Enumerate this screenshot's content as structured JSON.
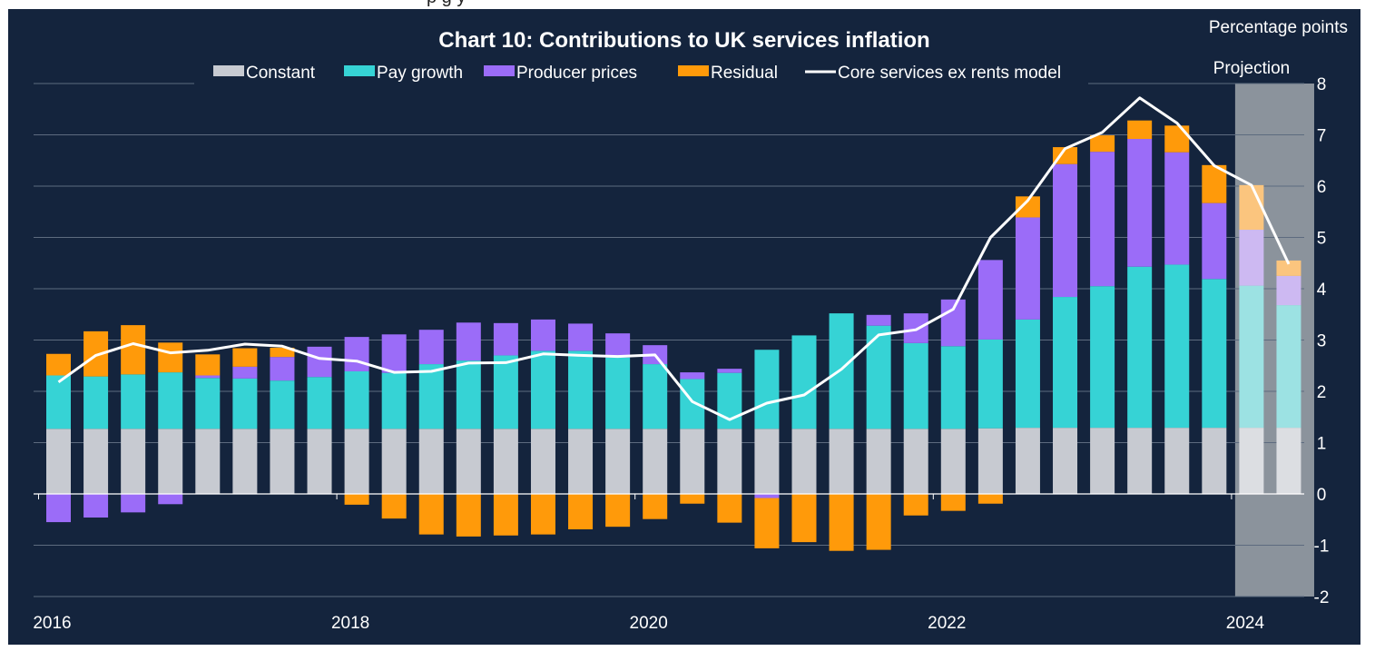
{
  "top_fragment": "p     g           y",
  "chart_data": {
    "type": "bar",
    "stacked": true,
    "title": "Chart 10: Contributions to UK services inflation",
    "unit_label": "Percentage points",
    "projection_label": "Projection",
    "legend_position": "top",
    "ylim": [
      -2,
      8
    ],
    "yticks": [
      "8",
      "7",
      "6",
      "5",
      "4",
      "3",
      "2",
      "1",
      "0",
      "-1",
      "-2"
    ],
    "xticks": [
      {
        "label": "2016",
        "year": 2016
      },
      {
        "label": "2018",
        "year": 2018
      },
      {
        "label": "2020",
        "year": 2020
      },
      {
        "label": "2022",
        "year": 2022
      },
      {
        "label": "2024",
        "year": 2024
      }
    ],
    "x": [
      2016.0,
      2016.25,
      2016.5,
      2016.75,
      2017.0,
      2017.25,
      2017.5,
      2017.75,
      2018.0,
      2018.25,
      2018.5,
      2018.75,
      2019.0,
      2019.25,
      2019.5,
      2019.75,
      2020.0,
      2020.25,
      2020.5,
      2020.75,
      2021.0,
      2021.25,
      2021.5,
      2021.75,
      2022.0,
      2022.25,
      2022.5,
      2022.75,
      2023.0,
      2023.25,
      2023.5,
      2023.75,
      2024.0,
      2024.25
    ],
    "projection_start_index": 32,
    "series": [
      {
        "name": "Constant",
        "color": "#c7cad1",
        "projection_color": "#dcdee2",
        "values": [
          1.27,
          1.27,
          1.27,
          1.27,
          1.27,
          1.27,
          1.27,
          1.27,
          1.27,
          1.27,
          1.27,
          1.27,
          1.27,
          1.27,
          1.27,
          1.27,
          1.27,
          1.27,
          1.27,
          1.27,
          1.27,
          1.27,
          1.27,
          1.27,
          1.27,
          1.28,
          1.29,
          1.29,
          1.29,
          1.29,
          1.29,
          1.29,
          1.29,
          1.29
        ]
      },
      {
        "name": "Pay growth",
        "color": "#36d3d5",
        "projection_color": "#9ce2e3",
        "values": [
          1.04,
          1.02,
          1.06,
          1.1,
          0.99,
          0.98,
          0.94,
          1.01,
          1.12,
          1.09,
          1.26,
          1.33,
          1.43,
          1.52,
          1.52,
          1.39,
          1.26,
          0.97,
          1.09,
          1.54,
          1.82,
          2.25,
          2.01,
          1.67,
          1.61,
          1.73,
          2.11,
          2.55,
          2.76,
          3.14,
          3.18,
          2.9,
          2.77,
          2.39
        ]
      },
      {
        "name": "Producer prices",
        "color": "#9b6cf8",
        "projection_color": "#cdb9f2",
        "values": [
          -0.55,
          -0.46,
          -0.36,
          -0.2,
          0.05,
          0.23,
          0.46,
          0.59,
          0.67,
          0.75,
          0.67,
          0.74,
          0.63,
          0.61,
          0.53,
          0.47,
          0.37,
          0.13,
          0.08,
          -0.08,
          0.0,
          0.0,
          0.21,
          0.58,
          0.91,
          1.55,
          1.99,
          2.59,
          2.62,
          2.49,
          2.19,
          1.48,
          1.09,
          0.57
        ]
      },
      {
        "name": "Residual",
        "color": "#ff9a0a",
        "projection_color": "#fbc57e",
        "values": [
          0.42,
          0.88,
          0.96,
          0.58,
          0.41,
          0.36,
          0.18,
          0.0,
          -0.21,
          -0.48,
          -0.79,
          -0.83,
          -0.81,
          -0.79,
          -0.69,
          -0.64,
          -0.49,
          -0.19,
          -0.56,
          -0.98,
          -0.94,
          -1.11,
          -1.09,
          -0.42,
          -0.33,
          -0.19,
          0.41,
          0.33,
          0.32,
          0.36,
          0.52,
          0.74,
          0.87,
          0.3
        ]
      }
    ],
    "line": {
      "name": "Core services ex rents model",
      "color": "#ffffff",
      "values": [
        2.18,
        2.7,
        2.93,
        2.75,
        2.8,
        2.92,
        2.88,
        2.64,
        2.59,
        2.37,
        2.39,
        2.55,
        2.56,
        2.73,
        2.7,
        2.68,
        2.71,
        1.8,
        1.45,
        1.77,
        1.93,
        2.43,
        3.1,
        3.2,
        3.6,
        5.0,
        5.72,
        6.73,
        7.05,
        7.72,
        7.23,
        6.4,
        6.02,
        4.48
      ]
    }
  }
}
